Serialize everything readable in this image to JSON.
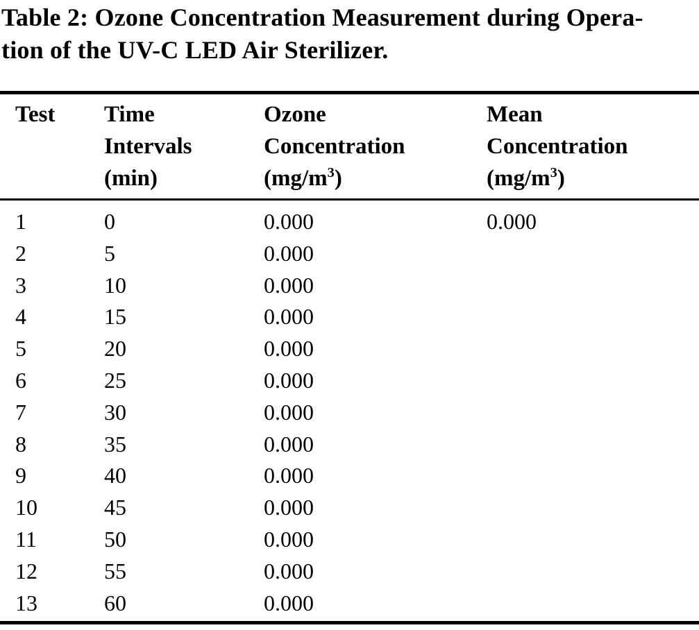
{
  "page": {
    "background": "#ffffff",
    "text_color": "#000000",
    "rule_color": "#000000"
  },
  "caption": {
    "label": "Table 2:",
    "line1": "Table 2: Ozone Concentration Measurement during Opera-",
    "line2": "tion of the UV-C LED Air Sterilizer.",
    "full_text": "Table 2: Ozone Concentration Measurement during Operation of the UV-C LED Air Sterilizer."
  },
  "table": {
    "columns": [
      {
        "id": "test",
        "header_lines": [
          "Test"
        ]
      },
      {
        "id": "time",
        "header_lines": [
          "Time",
          "Intervals",
          "(min)"
        ]
      },
      {
        "id": "ozone",
        "header_lines": [
          "Ozone",
          "Concentration",
          "(mg/m³)"
        ]
      },
      {
        "id": "mean",
        "header_lines": [
          "Mean",
          "Concentration",
          "(mg/m³)"
        ]
      }
    ],
    "rows": [
      {
        "test": "1",
        "time": "0",
        "ozone": "0.000",
        "mean": "0.000"
      },
      {
        "test": "2",
        "time": "5",
        "ozone": "0.000",
        "mean": ""
      },
      {
        "test": "3",
        "time": "10",
        "ozone": "0.000",
        "mean": ""
      },
      {
        "test": "4",
        "time": "15",
        "ozone": "0.000",
        "mean": ""
      },
      {
        "test": "5",
        "time": "20",
        "ozone": "0.000",
        "mean": ""
      },
      {
        "test": "6",
        "time": "25",
        "ozone": "0.000",
        "mean": ""
      },
      {
        "test": "7",
        "time": "30",
        "ozone": "0.000",
        "mean": ""
      },
      {
        "test": "8",
        "time": "35",
        "ozone": "0.000",
        "mean": ""
      },
      {
        "test": "9",
        "time": "40",
        "ozone": "0.000",
        "mean": ""
      },
      {
        "test": "10",
        "time": "45",
        "ozone": "0.000",
        "mean": ""
      },
      {
        "test": "11",
        "time": "50",
        "ozone": "0.000",
        "mean": ""
      },
      {
        "test": "12",
        "time": "55",
        "ozone": "0.000",
        "mean": ""
      },
      {
        "test": "13",
        "time": "60",
        "ozone": "0.000",
        "mean": ""
      }
    ]
  }
}
